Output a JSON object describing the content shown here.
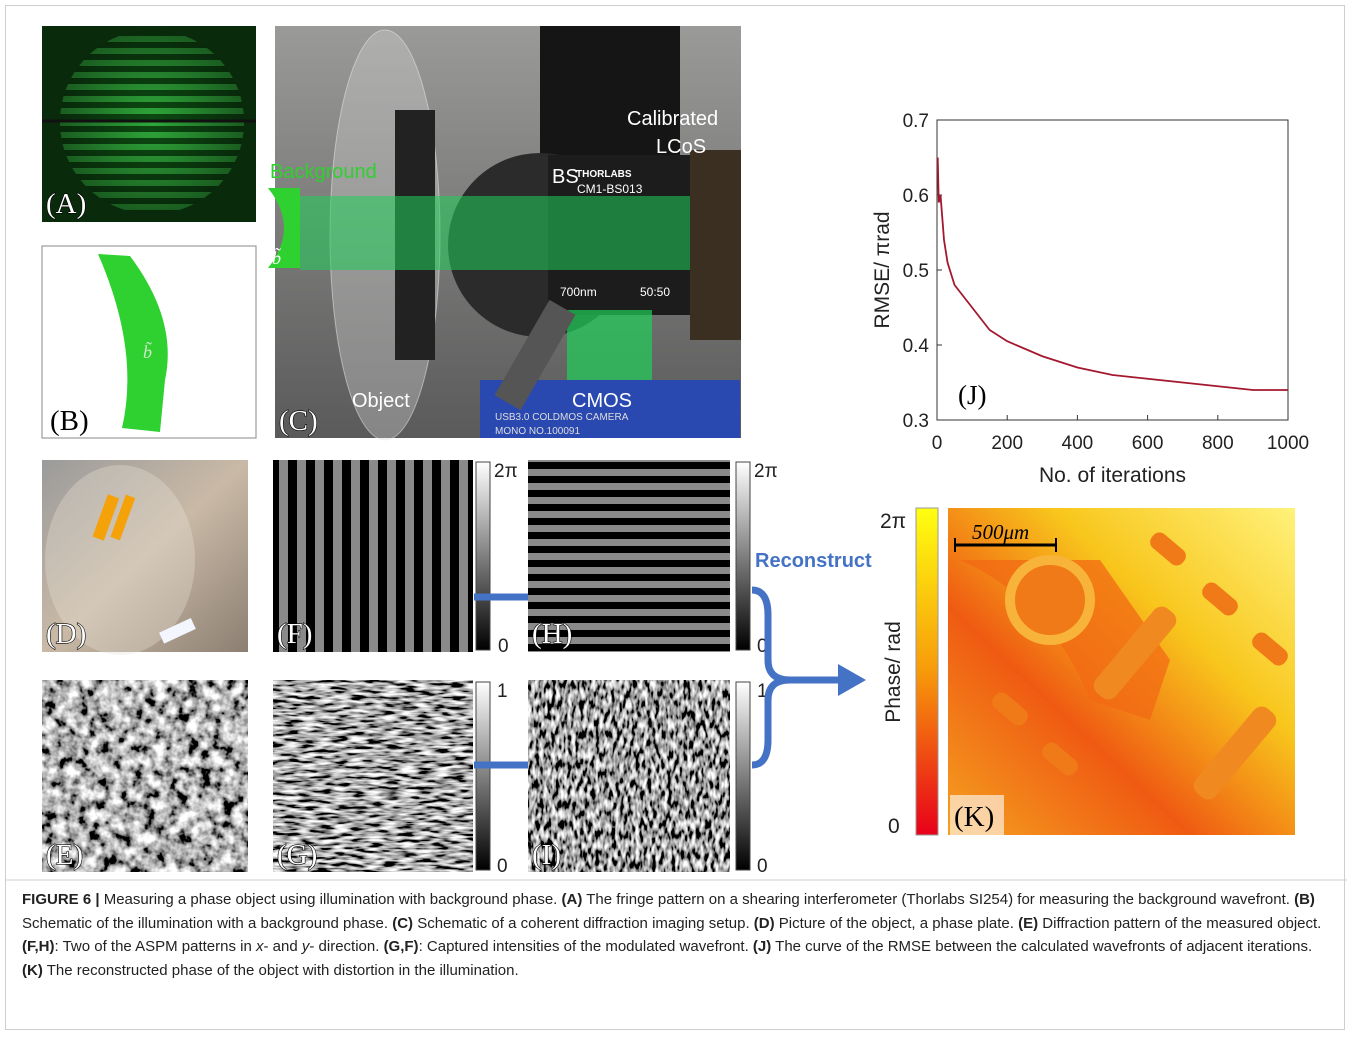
{
  "panel_labels": {
    "A": "(A)",
    "B": "(B)",
    "C": "(C)",
    "D": "(D)",
    "E": "(E)",
    "F": "(F)",
    "G": "(G)",
    "H": "(H)",
    "I": "(I)",
    "K": "(K)"
  },
  "setup_labels": {
    "calibrated": "Calibrated",
    "lcos": "LCoS",
    "background": "Background",
    "b_tilde_c": "b̃",
    "b_tilde_b": "b̃",
    "bs": "BS",
    "thorlabs": "THORLABS",
    "model": "CM1-BS013",
    "wavelength": "700nm",
    "ratio": "50:50",
    "object": "Object",
    "cmos": "CMOS",
    "camera": "USB3.0 COLDMOS CAMERA",
    "camera_no": "MONO NO.100091"
  },
  "colorbars": {
    "F": {
      "max": "2π",
      "min": "0"
    },
    "H": {
      "max": "2π",
      "min": "0"
    },
    "G": {
      "max": "1",
      "min": "0"
    },
    "I": {
      "max": "1",
      "min": "0"
    }
  },
  "reconstruct": "Reconstruct",
  "K": {
    "colorbar_max": "2π",
    "colorbar_min": "0",
    "ylabel": "Phase/ rad",
    "scale_bar": "500μm"
  },
  "chart_data": {
    "type": "line",
    "xlabel": "No. of iterations",
    "ylabel": "RMSE/ πrad",
    "annotation": "(J)",
    "x": [
      2,
      5,
      10,
      15,
      20,
      30,
      50,
      75,
      100,
      150,
      200,
      300,
      400,
      500,
      600,
      700,
      800,
      900,
      1000
    ],
    "series": [
      {
        "color": "#a3182e",
        "values": [
          0.65,
          0.59,
          0.6,
          0.57,
          0.54,
          0.51,
          0.48,
          0.465,
          0.45,
          0.42,
          0.405,
          0.385,
          0.37,
          0.36,
          0.355,
          0.35,
          0.345,
          0.34,
          0.34
        ]
      }
    ],
    "xlim": [
      0,
      1000
    ],
    "xticks": [
      0,
      200,
      400,
      600,
      800,
      1000
    ],
    "ylim": [
      0.3,
      0.7
    ],
    "yticks": [
      0.3,
      0.4,
      0.5,
      0.6,
      0.7
    ]
  },
  "caption": [
    {
      "strong": "FIGURE 6 |"
    },
    {
      "text": " Measuring a phase object using illumination with background phase. "
    },
    {
      "strong": "(A)"
    },
    {
      "text": " The fringe pattern on a shearing interferometer (Thorlabs SI254) for measuring the background wavefront. "
    },
    {
      "strong": "(B)"
    },
    {
      "text": " Schematic of the illumination with a background phase. "
    },
    {
      "strong": "(C)"
    },
    {
      "text": " Schematic of a coherent diffraction imaging setup. "
    },
    {
      "strong": "(D)"
    },
    {
      "text": " Picture of the object, a phase plate. "
    },
    {
      "strong": "(E)"
    },
    {
      "text": " Diffraction pattern of the measured object. "
    },
    {
      "strong": "(F,H)"
    },
    {
      "text": ": Two of the ASPM patterns in "
    },
    {
      "em": "x"
    },
    {
      "text": "- and "
    },
    {
      "em": "y"
    },
    {
      "text": "- direction. "
    },
    {
      "strong": "(G,F)"
    },
    {
      "text": ": Captured intensities of the modulated wavefront. "
    },
    {
      "strong": "(J)"
    },
    {
      "text": " The curve of the RMSE between the calculated wavefronts of adjacent iterations. "
    },
    {
      "strong": "(K)"
    },
    {
      "text": " The reconstructed phase of the object with distortion in the illumination."
    }
  ]
}
